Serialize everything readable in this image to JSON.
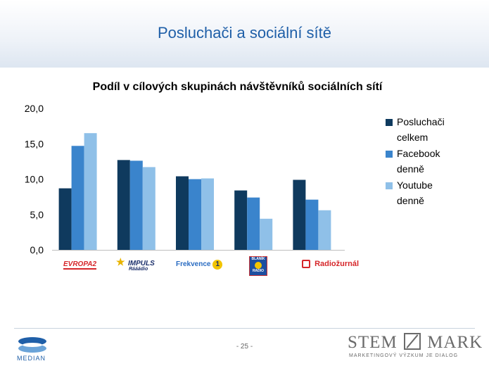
{
  "slide_title": "Posluchači a sociální sítě",
  "chart_data": {
    "type": "bar",
    "title": "Podíl v cílových skupinách návštěvníků sociálních sítí",
    "categories": [
      "Evropa 2",
      "Impuls",
      "Frekvence 1",
      "Blaník",
      "Radiožurnál"
    ],
    "series": [
      {
        "name": "Posluchači celkem",
        "color": "#0f3a5e",
        "values": [
          8.7,
          12.7,
          10.4,
          8.4,
          9.9
        ]
      },
      {
        "name": "Facebook denně",
        "color": "#3a84cc",
        "values": [
          14.7,
          12.6,
          10.0,
          7.4,
          7.1
        ]
      },
      {
        "name": "Youtube denně",
        "color": "#8fc0e8",
        "values": [
          16.5,
          11.7,
          10.1,
          4.4,
          5.6
        ]
      }
    ],
    "ylim": [
      0,
      20
    ],
    "yticks": [
      "0,0",
      "5,0",
      "10,0",
      "15,0",
      "20,0"
    ],
    "legend_position": "right"
  },
  "legend": [
    {
      "line1": "Posluchači",
      "line2": "celkem"
    },
    {
      "line1": "Facebook",
      "line2": "denně"
    },
    {
      "line1": "Youtube",
      "line2": "denně"
    }
  ],
  "logos": {
    "evropa2": "EVROPA2",
    "impuls": "IMPULS",
    "impuls_sub": "Rááádio",
    "frekvence": "Frekvence",
    "frekvence_num": "1",
    "blanik_top": "BLANÍK",
    "blanik_bottom": "RADIO",
    "radiozurnal": "Radiožurnál"
  },
  "footer": {
    "page": "- 25 -",
    "median": "MEDIAN",
    "stem_left": "STEM",
    "stem_right": "MARK",
    "stem_tag": "MARKETINGOVÝ VÝZKUM JE DIALOG"
  }
}
